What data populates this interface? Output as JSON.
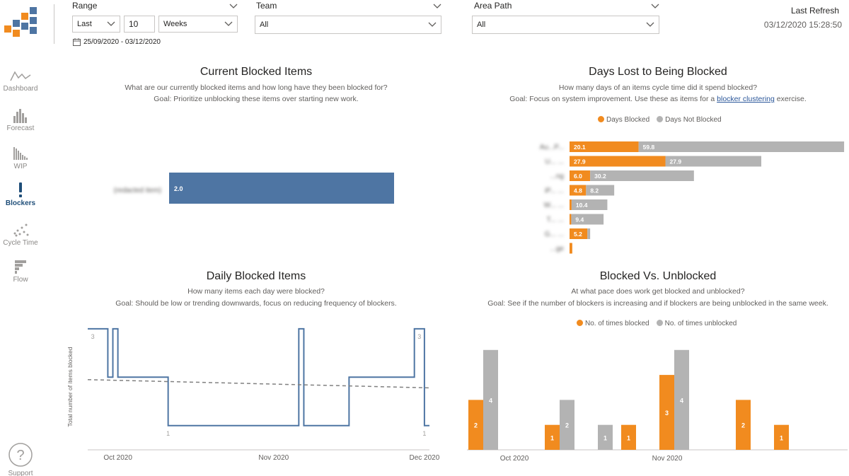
{
  "nav": {
    "items": [
      {
        "label": "Dashboard",
        "icon": "line-chart-icon"
      },
      {
        "label": "Forecast",
        "icon": "histogram-icon"
      },
      {
        "label": "WIP",
        "icon": "bars-descending-icon"
      },
      {
        "label": "Blockers",
        "icon": "exclamation-icon"
      },
      {
        "label": "Cycle Time",
        "icon": "scatter-icon"
      },
      {
        "label": "Flow",
        "icon": "flow-icon"
      }
    ],
    "active": "Blockers",
    "support_label": "Support"
  },
  "filters": {
    "range_label": "Range",
    "range_mode": "Last",
    "range_count": "10",
    "range_unit": "Weeks",
    "date_range": "25/09/2020 - 03/12/2020",
    "team_label": "Team",
    "team_value": "All",
    "area_label": "Area Path",
    "area_value": "All"
  },
  "refresh": {
    "title": "Last Refresh",
    "time": "03/12/2020 15:28:50"
  },
  "colors": {
    "blue": "#4e75a3",
    "orange": "#f18b1f",
    "gray": "#b3b3b3",
    "nav_active": "#1f4e79"
  },
  "current_blocked": {
    "title": "Current Blocked Items",
    "subtitle1": "What are our currently blocked items and how long have they been blocked for?",
    "subtitle2": "Goal: Prioritize unblocking these items over starting new work.",
    "chart_data": {
      "type": "bar",
      "orientation": "horizontal",
      "categories": [
        "(redacted item)"
      ],
      "values": [
        2.0
      ],
      "data_labels": [
        "2.0"
      ],
      "color": "#4e75a3"
    }
  },
  "days_lost": {
    "title": "Days Lost to Being Blocked",
    "subtitle1": "How many days of an items cycle time did it spend blocked?",
    "subtitle2_pre": "Goal: Focus on system improvement. Use these as items for a ",
    "subtitle2_link": "blocker clustering",
    "subtitle2_post": " exercise.",
    "legend": [
      "Days Blocked",
      "Days Not Blocked"
    ],
    "chart_data": {
      "type": "bar",
      "orientation": "horizontal",
      "stacked": true,
      "categories": [
        "Au...P...",
        "U... ...",
        "...ng",
        "iP... ...",
        "W... ...",
        "T... ...",
        "G... ...",
        "...ge"
      ],
      "series": [
        {
          "name": "Days Blocked",
          "color": "#f18b1f",
          "values": [
            20.1,
            27.9,
            6.0,
            4.8,
            0.6,
            0.5,
            5.2,
            0.8
          ],
          "labels": [
            "20.1",
            "27.9",
            "6.0",
            "4.8",
            "",
            "",
            "5.2",
            ""
          ]
        },
        {
          "name": "Days Not Blocked",
          "color": "#b3b3b3",
          "values": [
            59.8,
            27.9,
            30.2,
            8.2,
            10.4,
            9.4,
            0.8,
            0
          ],
          "labels": [
            "59.8",
            "27.9",
            "30.2",
            "8.2",
            "10.4",
            "9.4",
            "",
            ""
          ]
        }
      ],
      "xlim": [
        0,
        80.5
      ]
    }
  },
  "daily_blocked": {
    "title": "Daily Blocked Items",
    "subtitle1": "How many items each day were blocked?",
    "subtitle2": "Goal: Should be low or trending downwards, focus on reducing frequency of blockers.",
    "chart_data": {
      "type": "line",
      "step": true,
      "ylabel": "Total number of items blocked",
      "x_ticks": [
        "Oct 2020",
        "Nov 2020",
        "Dec 2020"
      ],
      "x_tick_days": [
        6,
        37,
        67
      ],
      "ylim": [
        0.5,
        3.1
      ],
      "series": [
        {
          "name": "Blocked items",
          "color": "#4e75a3",
          "points": [
            [
              0,
              3
            ],
            [
              4,
              3
            ],
            [
              4,
              2
            ],
            [
              5,
              2
            ],
            [
              5,
              3
            ],
            [
              6,
              3
            ],
            [
              6,
              2
            ],
            [
              16,
              2
            ],
            [
              16,
              1
            ],
            [
              42,
              1
            ],
            [
              42,
              3
            ],
            [
              43,
              3
            ],
            [
              43,
              1
            ],
            [
              52,
              1
            ],
            [
              52,
              2
            ],
            [
              65,
              2
            ],
            [
              65,
              3
            ],
            [
              67,
              3
            ],
            [
              67,
              1
            ],
            [
              68,
              1
            ]
          ]
        },
        {
          "name": "Trend",
          "color": "#808080",
          "dashed": true,
          "points": [
            [
              0,
              1.95
            ],
            [
              68,
              1.78
            ]
          ]
        }
      ],
      "data_labels": [
        {
          "x": 1,
          "y": 3,
          "text": "3"
        },
        {
          "x": 16,
          "y": 1,
          "text": "1"
        },
        {
          "x": 66,
          "y": 3,
          "text": "3"
        },
        {
          "x": 67,
          "y": 1,
          "text": "1"
        }
      ]
    }
  },
  "blocked_unblocked": {
    "title": "Blocked Vs. Unblocked",
    "subtitle1": "At what pace does work get blocked and unblocked?",
    "subtitle2": "Goal: See if the number of blockers is increasing and if blockers are being unblocked in the same week.",
    "legend": [
      "No. of times blocked",
      "No. of times unblocked"
    ],
    "chart_data": {
      "type": "bar",
      "grouped": true,
      "x_ticks": [
        "Oct 2020",
        "Nov 2020"
      ],
      "x_tick_week_index": [
        1,
        5
      ],
      "weeks": [
        0,
        1,
        2,
        3,
        4,
        5,
        6,
        7,
        8,
        9
      ],
      "series": [
        {
          "name": "No. of times blocked",
          "color": "#f18b1f",
          "values": [
            2,
            0,
            1,
            0,
            1,
            3,
            0,
            2,
            1,
            0
          ]
        },
        {
          "name": "No. of times unblocked",
          "color": "#b3b3b3",
          "values": [
            4,
            0,
            2,
            1,
            0,
            4,
            0,
            0,
            0,
            0
          ]
        }
      ],
      "ylim": [
        0,
        4
      ]
    }
  }
}
